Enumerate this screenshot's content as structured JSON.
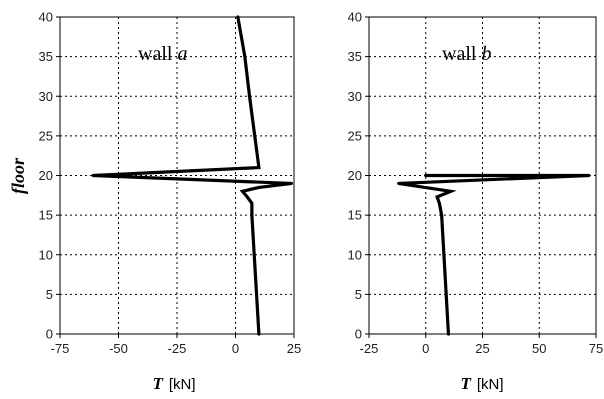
{
  "chart_data": [
    {
      "type": "line",
      "annotation": {
        "prefix": "wall ",
        "letter": "a"
      },
      "xlabel": {
        "symbol": "T",
        "unit": "[kN]"
      },
      "ylabel": "floor",
      "xlim": [
        -75,
        25
      ],
      "ylim": [
        0,
        40
      ],
      "xticks": [
        -75,
        -50,
        -25,
        0,
        25
      ],
      "yticks": [
        0,
        5,
        10,
        15,
        20,
        25,
        30,
        35,
        40
      ],
      "grid": true,
      "series": [
        {
          "points": [
            {
              "x": 10,
              "y": 0
            },
            {
              "x": 9,
              "y": 5
            },
            {
              "x": 8,
              "y": 10
            },
            {
              "x": 7,
              "y": 15
            },
            {
              "x": 7,
              "y": 16.5
            },
            {
              "x": 5,
              "y": 17.3
            },
            {
              "x": 3,
              "y": 18
            },
            {
              "x": 10,
              "y": 18.5
            },
            {
              "x": 24,
              "y": 19
            },
            {
              "x": -61,
              "y": 20
            },
            {
              "x": 10,
              "y": 21
            },
            {
              "x": 6,
              "y": 30
            },
            {
              "x": 4,
              "y": 35
            },
            {
              "x": 1,
              "y": 40
            }
          ]
        }
      ]
    },
    {
      "type": "line",
      "annotation": {
        "prefix": "wall ",
        "letter": "b"
      },
      "xlabel": {
        "symbol": "T",
        "unit": "[kN]"
      },
      "ylabel": "",
      "xlim": [
        -25,
        75
      ],
      "ylim": [
        0,
        40
      ],
      "xticks": [
        -25,
        0,
        25,
        50,
        75
      ],
      "yticks": [
        0,
        5,
        10,
        15,
        20,
        25,
        30,
        35,
        40
      ],
      "grid": true,
      "series": [
        {
          "points": [
            {
              "x": 10,
              "y": 0
            },
            {
              "x": 9,
              "y": 5
            },
            {
              "x": 8,
              "y": 10
            },
            {
              "x": 7,
              "y": 15
            },
            {
              "x": 6,
              "y": 16.5
            },
            {
              "x": 5,
              "y": 17.3
            },
            {
              "x": 11,
              "y": 18
            },
            {
              "x": -12,
              "y": 19
            },
            {
              "x": 72,
              "y": 20
            },
            {
              "x": 0,
              "y": 20
            }
          ]
        }
      ]
    }
  ]
}
